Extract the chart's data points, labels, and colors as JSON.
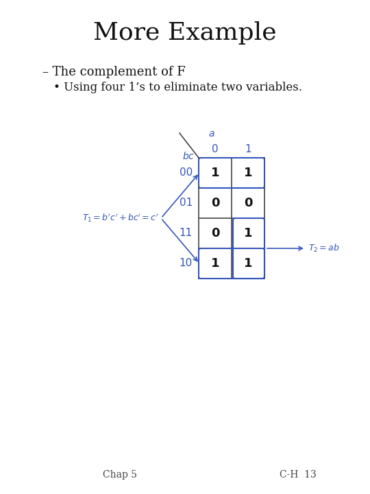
{
  "title": "More Example",
  "subtitle": "– The complement of F",
  "bullet": "• Using four 1’s to eliminate two variables.",
  "footer_left": "Chap 5",
  "footer_right": "C-H  13",
  "bg_color": "#ffffff",
  "kmap": {
    "col_header_var": "a",
    "row_header_var": "bc",
    "col_labels": [
      "0",
      "1"
    ],
    "row_labels": [
      "00",
      "01",
      "11",
      "10"
    ],
    "values": [
      [
        1,
        1
      ],
      [
        0,
        0
      ],
      [
        0,
        1
      ],
      [
        1,
        1
      ]
    ],
    "grid_color": "#444444",
    "blue_color": "#3355bb",
    "cell_value_color": "#111111"
  },
  "T1_label": "$T_1 = b'c' + bc' = c'$",
  "T2_label": "$T_2 = ab$",
  "title_fontsize": 26,
  "subtitle_fontsize": 13,
  "bullet_fontsize": 12,
  "footer_fontsize": 10
}
